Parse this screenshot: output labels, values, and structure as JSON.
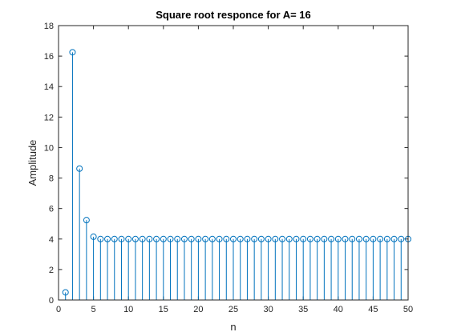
{
  "chart_data": {
    "type": "stem",
    "title": "Square root responce for A= 16",
    "xlabel": "n",
    "ylabel": "Amplitude",
    "xlim": [
      0,
      50
    ],
    "ylim": [
      0,
      18
    ],
    "xticks": [
      "0",
      "5",
      "10",
      "15",
      "20",
      "25",
      "30",
      "35",
      "40",
      "45",
      "50"
    ],
    "yticks": [
      "0",
      "2",
      "4",
      "6",
      "8",
      "10",
      "12",
      "14",
      "16",
      "18"
    ],
    "grid": false,
    "color": "#0072BD",
    "series": [
      {
        "x": [
          1,
          2,
          3,
          4,
          5,
          6,
          7,
          8,
          9,
          10,
          11,
          12,
          13,
          14,
          15,
          16,
          17,
          18,
          19,
          20,
          21,
          22,
          23,
          24,
          25,
          26,
          27,
          28,
          29,
          30,
          31,
          32,
          33,
          34,
          35,
          36,
          37,
          38,
          39,
          40,
          41,
          42,
          43,
          44,
          45,
          46,
          47,
          48,
          49,
          50
        ],
        "y": [
          0.5,
          16.25,
          8.62,
          5.24,
          4.15,
          4.0,
          4.0,
          4.0,
          4.0,
          4.0,
          4.0,
          4.0,
          4.0,
          4.0,
          4.0,
          4.0,
          4.0,
          4.0,
          4.0,
          4.0,
          4.0,
          4.0,
          4.0,
          4.0,
          4.0,
          4.0,
          4.0,
          4.0,
          4.0,
          4.0,
          4.0,
          4.0,
          4.0,
          4.0,
          4.0,
          4.0,
          4.0,
          4.0,
          4.0,
          4.0,
          4.0,
          4.0,
          4.0,
          4.0,
          4.0,
          4.0,
          4.0,
          4.0,
          4.0,
          4.0
        ]
      }
    ]
  }
}
